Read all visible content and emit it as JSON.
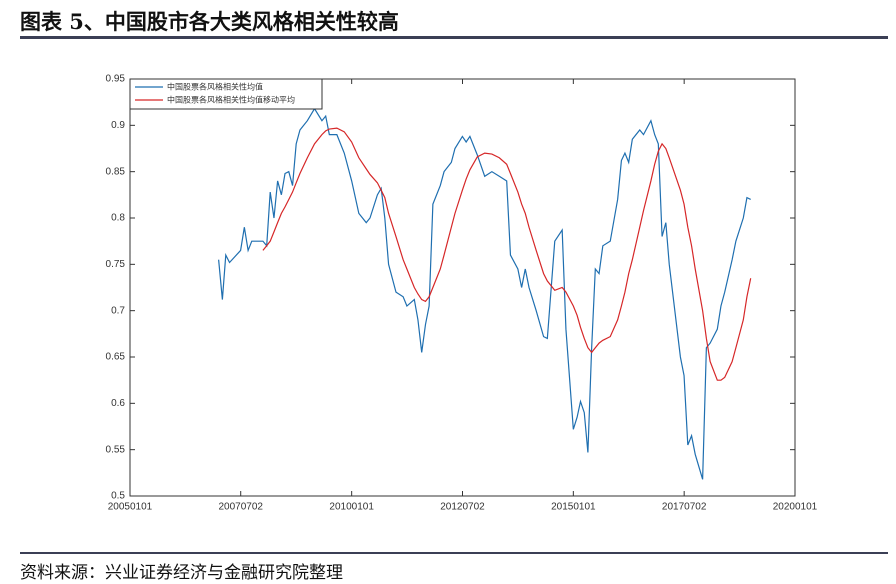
{
  "title": "图表 5、中国股市各大类风格相关性较高",
  "source": "资料来源：兴业证券经济与金融研究院整理",
  "chart_data": {
    "type": "line",
    "x": [
      "20070101",
      "20070201",
      "20070301",
      "20070401",
      "20070701",
      "20070801",
      "20070901",
      "20071001",
      "20080101",
      "20080201",
      "20080301",
      "20080401",
      "20080501",
      "20080601",
      "20080701",
      "20080801",
      "20080901",
      "20081001",
      "20081101",
      "20090101",
      "20090301",
      "20090501",
      "20090601",
      "20090701",
      "20090901",
      "20091101",
      "20100101",
      "20100301",
      "20100501",
      "20100601",
      "20100801",
      "20100901",
      "20101001",
      "20101101",
      "20110101",
      "20110301",
      "20110401",
      "20110601",
      "20110701",
      "20110801",
      "20110901",
      "20111001",
      "20111101",
      "20120101",
      "20120201",
      "20120401",
      "20120501",
      "20120701",
      "20120801",
      "20120901",
      "20121101",
      "20130101",
      "20130301",
      "20130501",
      "20130701",
      "20130801",
      "20131001",
      "20131101",
      "20131201",
      "20140101",
      "20140301",
      "20140501",
      "20140601",
      "20140801",
      "20141001",
      "20141101",
      "20150101",
      "20150201",
      "20150301",
      "20150401",
      "20150501",
      "20150601",
      "20150701",
      "20150801",
      "20150901",
      "20151101",
      "20160101",
      "20160201",
      "20160301",
      "20160401",
      "20160501",
      "20160701",
      "20160801",
      "20161001",
      "20161101",
      "20161201",
      "20170101",
      "20170201",
      "20170301",
      "20170601",
      "20170701",
      "20170801",
      "20170901",
      "20171001",
      "20171201",
      "20180101",
      "20180201",
      "20180401",
      "20180501",
      "20180601",
      "20180801",
      "20180901",
      "20181101",
      "20181201",
      "20190101"
    ],
    "series": [
      {
        "name": "中国股票各风格相关性均值",
        "color": "#1f6fb0",
        "values": [
          0.755,
          0.712,
          0.76,
          0.752,
          0.765,
          0.79,
          0.765,
          0.775,
          0.775,
          0.77,
          0.828,
          0.8,
          0.84,
          0.825,
          0.848,
          0.85,
          0.835,
          0.88,
          0.895,
          0.905,
          0.918,
          0.905,
          0.91,
          0.89,
          0.89,
          0.87,
          0.84,
          0.805,
          0.795,
          0.8,
          0.825,
          0.832,
          0.8,
          0.75,
          0.72,
          0.715,
          0.705,
          0.712,
          0.69,
          0.655,
          0.685,
          0.705,
          0.815,
          0.835,
          0.85,
          0.86,
          0.875,
          0.888,
          0.882,
          0.888,
          0.868,
          0.845,
          0.85,
          0.845,
          0.84,
          0.76,
          0.745,
          0.725,
          0.745,
          0.725,
          0.7,
          0.672,
          0.67,
          0.775,
          0.787,
          0.68,
          0.572,
          0.585,
          0.602,
          0.59,
          0.547,
          0.66,
          0.745,
          0.74,
          0.77,
          0.775,
          0.82,
          0.862,
          0.87,
          0.86,
          0.885,
          0.895,
          0.89,
          0.905,
          0.89,
          0.88,
          0.78,
          0.795,
          0.75,
          0.65,
          0.63,
          0.555,
          0.565,
          0.545,
          0.518,
          0.66,
          0.665,
          0.68,
          0.705,
          0.72,
          0.755,
          0.775,
          0.8,
          0.822,
          0.82
        ]
      },
      {
        "name": "中国股票各风格相关性均值移动平均",
        "color": "#d62728",
        "values": [
          null,
          null,
          null,
          null,
          null,
          null,
          null,
          null,
          0.765,
          0.77,
          0.775,
          0.785,
          0.795,
          0.805,
          0.812,
          0.82,
          0.828,
          0.838,
          0.848,
          0.865,
          0.88,
          0.89,
          0.894,
          0.896,
          0.897,
          0.893,
          0.882,
          0.865,
          0.853,
          0.847,
          0.838,
          0.83,
          0.822,
          0.805,
          0.78,
          0.755,
          0.745,
          0.725,
          0.718,
          0.712,
          0.71,
          0.715,
          0.725,
          0.745,
          0.76,
          0.79,
          0.805,
          0.83,
          0.842,
          0.852,
          0.866,
          0.87,
          0.869,
          0.865,
          0.858,
          0.848,
          0.828,
          0.815,
          0.805,
          0.79,
          0.765,
          0.74,
          0.732,
          0.722,
          0.725,
          0.72,
          0.705,
          0.695,
          0.682,
          0.67,
          0.66,
          0.655,
          0.66,
          0.665,
          0.668,
          0.672,
          0.69,
          0.705,
          0.72,
          0.74,
          0.755,
          0.79,
          0.808,
          0.84,
          0.858,
          0.872,
          0.88,
          0.875,
          0.865,
          0.83,
          0.815,
          0.79,
          0.77,
          0.745,
          0.7,
          0.67,
          0.645,
          0.625,
          0.625,
          0.628,
          0.645,
          0.66,
          0.69,
          0.715,
          0.735
        ]
      }
    ],
    "xlim": [
      "20050101",
      "20200101"
    ],
    "xticks": [
      "20050101",
      "20070702",
      "20100101",
      "20120702",
      "20150101",
      "20170702",
      "20200101"
    ],
    "ylim": [
      0.5,
      0.95
    ],
    "yticks": [
      0.5,
      0.55,
      0.6,
      0.65,
      0.7,
      0.75,
      0.8,
      0.85,
      0.9,
      0.95
    ],
    "legend": "upper left"
  }
}
